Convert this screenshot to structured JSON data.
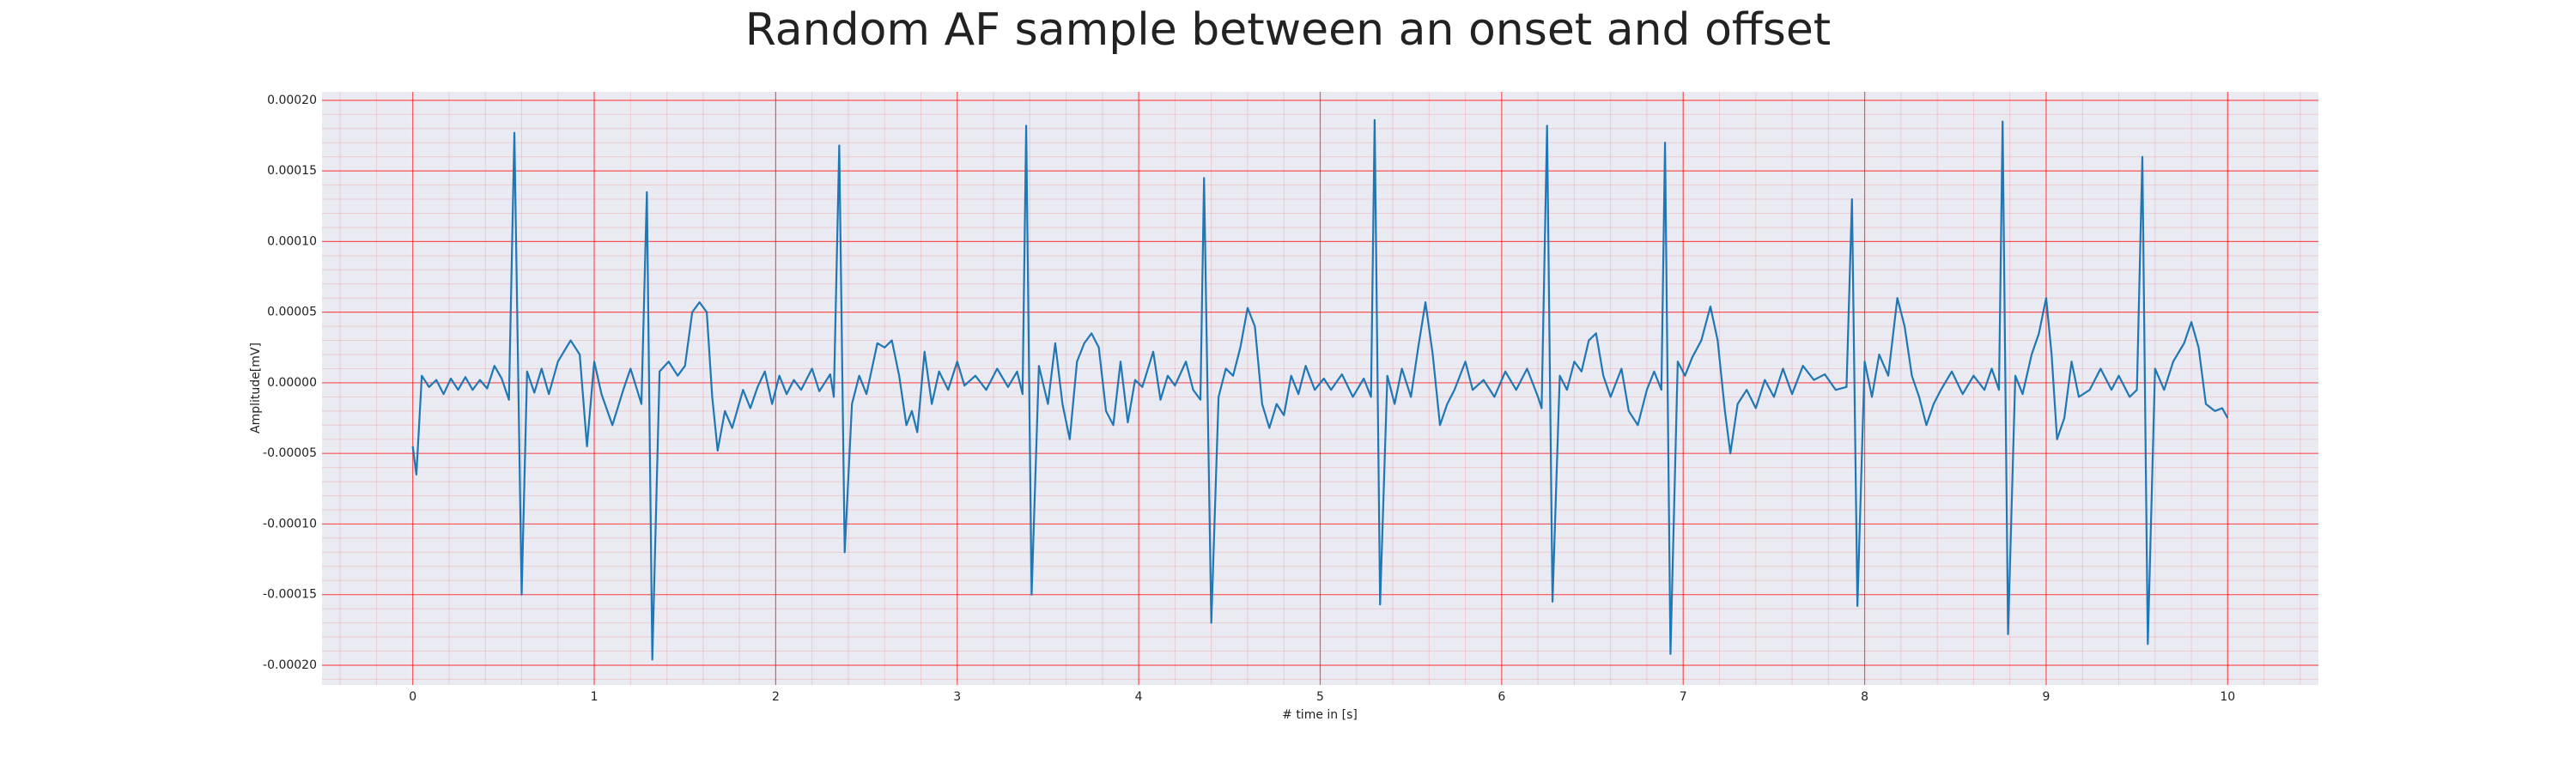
{
  "chart_data": {
    "type": "line",
    "title": "Random AF sample between an onset and offset",
    "xlabel": "# time in [s]",
    "ylabel": "Amplitude[mV]",
    "xlim": [
      -0.5,
      10.5
    ],
    "ylim": [
      -0.000214,
      0.000206
    ],
    "xticks": [
      0,
      1,
      2,
      3,
      4,
      5,
      6,
      7,
      8,
      9,
      10
    ],
    "yticks": [
      {
        "value": 0.0002,
        "label": "0.00020"
      },
      {
        "value": 0.00015,
        "label": "0.00015"
      },
      {
        "value": 0.0001,
        "label": "0.00010"
      },
      {
        "value": 5e-05,
        "label": "0.00005"
      },
      {
        "value": 0,
        "label": "0.00000"
      },
      {
        "value": -5e-05,
        "label": "-0.00005"
      },
      {
        "value": -0.0001,
        "label": "-0.00010"
      },
      {
        "value": -0.00015,
        "label": "-0.00015"
      },
      {
        "value": -0.0002,
        "label": "-0.00020"
      }
    ],
    "grid": true,
    "minor_grid": true,
    "x": [
      0,
      0.02,
      0.05,
      0.09,
      0.13,
      0.17,
      0.21,
      0.25,
      0.29,
      0.33,
      0.37,
      0.41,
      0.45,
      0.49,
      0.53,
      0.56,
      0.6,
      0.63,
      0.67,
      0.71,
      0.75,
      0.8,
      0.87,
      0.92,
      0.96,
      1.0,
      1.04,
      1.1,
      1.16,
      1.2,
      1.26,
      1.29,
      1.32,
      1.36,
      1.41,
      1.46,
      1.5,
      1.54,
      1.58,
      1.62,
      1.65,
      1.68,
      1.72,
      1.76,
      1.82,
      1.86,
      1.9,
      1.94,
      1.98,
      2.02,
      2.06,
      2.1,
      2.14,
      2.2,
      2.24,
      2.3,
      2.32,
      2.35,
      2.38,
      2.42,
      2.46,
      2.5,
      2.56,
      2.6,
      2.64,
      2.68,
      2.72,
      2.75,
      2.78,
      2.82,
      2.86,
      2.9,
      2.95,
      3.0,
      3.04,
      3.1,
      3.16,
      3.22,
      3.28,
      3.33,
      3.36,
      3.38,
      3.41,
      3.45,
      3.5,
      3.54,
      3.58,
      3.62,
      3.66,
      3.7,
      3.74,
      3.78,
      3.82,
      3.86,
      3.9,
      3.94,
      3.98,
      4.02,
      4.08,
      4.12,
      4.16,
      4.2,
      4.26,
      4.3,
      4.34,
      4.36,
      4.4,
      4.44,
      4.48,
      4.52,
      4.56,
      4.6,
      4.64,
      4.68,
      4.72,
      4.76,
      4.8,
      4.84,
      4.88,
      4.92,
      4.97,
      5.02,
      5.06,
      5.12,
      5.18,
      5.24,
      5.28,
      5.3,
      5.33,
      5.37,
      5.41,
      5.45,
      5.5,
      5.54,
      5.58,
      5.62,
      5.66,
      5.7,
      5.74,
      5.8,
      5.84,
      5.9,
      5.96,
      6.02,
      6.08,
      6.14,
      6.2,
      6.22,
      6.25,
      6.28,
      6.32,
      6.36,
      6.4,
      6.44,
      6.48,
      6.52,
      6.56,
      6.6,
      6.66,
      6.7,
      6.75,
      6.8,
      6.84,
      6.88,
      6.9,
      6.93,
      6.97,
      7.01,
      7.05,
      7.1,
      7.15,
      7.19,
      7.23,
      7.26,
      7.3,
      7.35,
      7.4,
      7.45,
      7.5,
      7.55,
      7.6,
      7.66,
      7.72,
      7.78,
      7.84,
      7.9,
      7.93,
      7.96,
      8.0,
      8.04,
      8.08,
      8.13,
      8.18,
      8.22,
      8.26,
      8.3,
      8.34,
      8.38,
      8.42,
      8.48,
      8.54,
      8.6,
      8.66,
      8.7,
      8.74,
      8.76,
      8.79,
      8.83,
      8.87,
      8.92,
      8.96,
      9.0,
      9.03,
      9.06,
      9.1,
      9.14,
      9.18,
      9.24,
      9.3,
      9.36,
      9.4,
      9.46,
      9.5,
      9.53,
      9.56,
      9.6,
      9.65,
      9.7,
      9.76,
      9.8,
      9.84,
      9.88,
      9.93,
      9.97,
      10.0
    ],
    "series": [
      {
        "color": "#1f77b4",
        "values": [
          -4.5e-05,
          -6.5e-05,
          5e-06,
          -3e-06,
          2e-06,
          -8e-06,
          3e-06,
          -5e-06,
          4e-06,
          -5e-06,
          2e-06,
          -4e-06,
          1.2e-05,
          3e-06,
          -1.2e-05,
          0.000177,
          -0.00015,
          8e-06,
          -7e-06,
          1e-05,
          -8e-06,
          1.5e-05,
          3e-05,
          2e-05,
          -4.5e-05,
          1.5e-05,
          -8e-06,
          -3e-05,
          -5e-06,
          1e-05,
          -1.5e-05,
          0.000135,
          -0.000196,
          8e-06,
          1.5e-05,
          5e-06,
          1.2e-05,
          5e-05,
          5.7e-05,
          5e-05,
          -1e-05,
          -4.8e-05,
          -2e-05,
          -3.2e-05,
          -5e-06,
          -1.8e-05,
          -3e-06,
          8e-06,
          -1.5e-05,
          5e-06,
          -8e-06,
          2e-06,
          -5e-06,
          1e-05,
          -6e-06,
          6e-06,
          -1e-05,
          0.000168,
          -0.00012,
          -1.5e-05,
          5e-06,
          -8e-06,
          2.8e-05,
          2.5e-05,
          3e-05,
          5e-06,
          -3e-05,
          -2e-05,
          -3.5e-05,
          2.2e-05,
          -1.5e-05,
          8e-06,
          -5e-06,
          1.5e-05,
          -2e-06,
          5e-06,
          -5e-06,
          1e-05,
          -3e-06,
          8e-06,
          -8e-06,
          0.000182,
          -0.00015,
          1.2e-05,
          -1.5e-05,
          2.8e-05,
          -1.5e-05,
          -4e-05,
          1.5e-05,
          2.8e-05,
          3.5e-05,
          2.5e-05,
          -2e-05,
          -3e-05,
          1.5e-05,
          -2.8e-05,
          2e-06,
          -3e-06,
          2.2e-05,
          -1.2e-05,
          5e-06,
          -2e-06,
          1.5e-05,
          -5e-06,
          -1.2e-05,
          0.000145,
          -0.00017,
          -1e-05,
          1e-05,
          5e-06,
          2.5e-05,
          5.3e-05,
          4e-05,
          -1.5e-05,
          -3.2e-05,
          -1.5e-05,
          -2.3e-05,
          5e-06,
          -8e-06,
          1.2e-05,
          -5e-06,
          3e-06,
          -5e-06,
          6e-06,
          -1e-05,
          3e-06,
          -1e-05,
          0.000186,
          -0.000157,
          5e-06,
          -1.5e-05,
          1e-05,
          -1e-05,
          2.5e-05,
          5.7e-05,
          2e-05,
          -3e-05,
          -1.5e-05,
          -5e-06,
          1.5e-05,
          -5e-06,
          2e-06,
          -1e-05,
          8e-06,
          -5e-06,
          1e-05,
          -1e-05,
          -1.8e-05,
          0.000182,
          -0.000155,
          5e-06,
          -5e-06,
          1.5e-05,
          8e-06,
          3e-05,
          3.5e-05,
          5e-06,
          -1e-05,
          1e-05,
          -2e-05,
          -3e-05,
          -5e-06,
          8e-06,
          -5e-06,
          0.00017,
          -0.000192,
          1.5e-05,
          5e-06,
          1.8e-05,
          3e-05,
          5.4e-05,
          3e-05,
          -2e-05,
          -5e-05,
          -1.5e-05,
          -5e-06,
          -1.8e-05,
          2e-06,
          -1e-05,
          1e-05,
          -8e-06,
          1.2e-05,
          2e-06,
          6e-06,
          -5e-06,
          -3e-06,
          0.00013,
          -0.000158,
          1.5e-05,
          -1e-05,
          2e-05,
          5e-06,
          6e-05,
          4e-05,
          5e-06,
          -1e-05,
          -3e-05,
          -1.5e-05,
          -5e-06,
          8e-06,
          -8e-06,
          5e-06,
          -5e-06,
          1e-05,
          -5e-06,
          0.000185,
          -0.000178,
          5e-06,
          -8e-06,
          2e-05,
          3.5e-05,
          6e-05,
          2e-05,
          -4e-05,
          -2.5e-05,
          1.5e-05,
          -1e-05,
          -5e-06,
          1e-05,
          -5e-06,
          5e-06,
          -1e-05,
          -5e-06,
          0.00016,
          -0.000185,
          1e-05,
          -5e-06,
          1.5e-05,
          2.8e-05,
          4.3e-05,
          2.5e-05,
          -1.5e-05,
          -2e-05,
          -1.8e-05,
          -2.5e-05
        ]
      }
    ]
  }
}
